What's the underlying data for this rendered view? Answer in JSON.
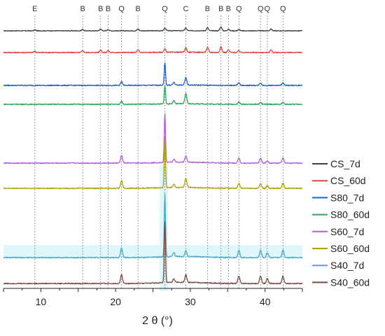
{
  "chart_data": {
    "type": "line",
    "title": "",
    "xlabel": "2 θ (°)",
    "ylabel": "",
    "xlim": [
      5,
      45
    ],
    "xticks": [
      10,
      20,
      30,
      40
    ],
    "grid": false,
    "legend_position": "right",
    "peak_labels": [
      {
        "x": 9.2,
        "label": "E"
      },
      {
        "x": 15.6,
        "label": "B"
      },
      {
        "x": 18.0,
        "label": "B"
      },
      {
        "x": 19.0,
        "label": "B"
      },
      {
        "x": 20.8,
        "label": "Q"
      },
      {
        "x": 23.0,
        "label": "B"
      },
      {
        "x": 26.6,
        "label": "Q"
      },
      {
        "x": 29.4,
        "label": "C"
      },
      {
        "x": 32.3,
        "label": "B"
      },
      {
        "x": 34.1,
        "label": "B"
      },
      {
        "x": 35.1,
        "label": "B"
      },
      {
        "x": 36.5,
        "label": "Q"
      },
      {
        "x": 39.4,
        "label": "Q"
      },
      {
        "x": 40.3,
        "label": "Q"
      },
      {
        "x": 42.4,
        "label": "Q"
      }
    ],
    "series": [
      {
        "name": "CS_7d",
        "color": "#404040",
        "peaks": [
          [
            9.2,
            2
          ],
          [
            15.6,
            3
          ],
          [
            18.0,
            4
          ],
          [
            19.0,
            3
          ],
          [
            23.0,
            4
          ],
          [
            26.6,
            6
          ],
          [
            29.4,
            6
          ],
          [
            32.3,
            7
          ],
          [
            34.1,
            9
          ],
          [
            35.1,
            4
          ],
          [
            36.5,
            3
          ],
          [
            40.8,
            4
          ]
        ]
      },
      {
        "name": "CS_60d",
        "color": "#e0443c",
        "peaks": [
          [
            9.2,
            2
          ],
          [
            15.6,
            3
          ],
          [
            18.0,
            4
          ],
          [
            19.0,
            3
          ],
          [
            23.0,
            4
          ],
          [
            26.6,
            5
          ],
          [
            29.4,
            7
          ],
          [
            32.3,
            8
          ],
          [
            34.1,
            9
          ],
          [
            35.1,
            4
          ],
          [
            36.5,
            3
          ],
          [
            40.8,
            4
          ]
        ]
      },
      {
        "name": "S80_7d",
        "color": "#1f5fd0",
        "peaks": [
          [
            20.8,
            6
          ],
          [
            26.6,
            36
          ],
          [
            27.8,
            4
          ],
          [
            29.4,
            12
          ],
          [
            36.5,
            4
          ],
          [
            39.4,
            4
          ],
          [
            42.4,
            4
          ]
        ]
      },
      {
        "name": "S80_60d",
        "color": "#2ca85a",
        "peaks": [
          [
            20.8,
            5
          ],
          [
            26.6,
            30
          ],
          [
            27.8,
            5
          ],
          [
            29.4,
            16
          ],
          [
            36.5,
            4
          ],
          [
            39.4,
            3
          ],
          [
            42.4,
            3
          ]
        ]
      },
      {
        "name": "S60_7d",
        "color": "#b05ee0",
        "peaks": [
          [
            20.8,
            12
          ],
          [
            26.6,
            78
          ],
          [
            27.8,
            5
          ],
          [
            29.4,
            10
          ],
          [
            36.5,
            8
          ],
          [
            39.4,
            8
          ],
          [
            40.3,
            4
          ],
          [
            42.4,
            8
          ]
        ]
      },
      {
        "name": "S60_60d",
        "color": "#b0a000",
        "peaks": [
          [
            20.8,
            12
          ],
          [
            26.6,
            80
          ],
          [
            27.8,
            5
          ],
          [
            29.4,
            14
          ],
          [
            36.5,
            8
          ],
          [
            39.4,
            8
          ],
          [
            40.3,
            4
          ],
          [
            42.4,
            8
          ]
        ]
      },
      {
        "name": "S40_7d",
        "color": "#4aa8c8",
        "peaks": [
          [
            20.8,
            16
          ],
          [
            26.6,
            100
          ],
          [
            27.8,
            6
          ],
          [
            29.4,
            9
          ],
          [
            36.5,
            12
          ],
          [
            39.4,
            12
          ],
          [
            40.3,
            8
          ],
          [
            42.4,
            12
          ]
        ]
      },
      {
        "name": "S40_60d",
        "color": "#7a4a40",
        "peaks": [
          [
            20.8,
            14
          ],
          [
            26.6,
            96
          ],
          [
            27.8,
            6
          ],
          [
            29.4,
            12
          ],
          [
            36.5,
            12
          ],
          [
            39.4,
            12
          ],
          [
            40.3,
            8
          ],
          [
            42.4,
            12
          ]
        ]
      }
    ]
  }
}
